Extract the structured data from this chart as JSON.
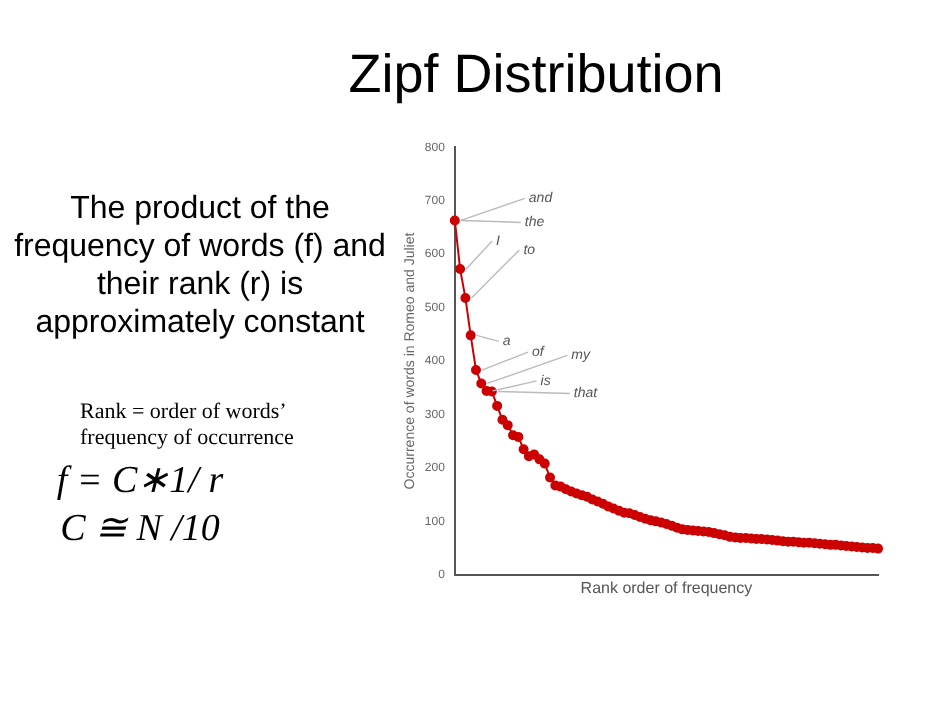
{
  "chart_data": {
    "type": "line",
    "title": "Zipf Distribution",
    "xlabel": "Rank order of frequency",
    "ylabel": "Occurrence of words in Romeo and Juliet",
    "categories": [
      null,
      null,
      null,
      null,
      null,
      null,
      null,
      null,
      null,
      null,
      null,
      null,
      null,
      null,
      null,
      null,
      null,
      null,
      null,
      null,
      null,
      null,
      null,
      null,
      null,
      null,
      null,
      null,
      null,
      null,
      null,
      null,
      null,
      null,
      null,
      null,
      null,
      null,
      null,
      null,
      null,
      null,
      null,
      null,
      null,
      null,
      null,
      null,
      null,
      null,
      null,
      null,
      null,
      null,
      null,
      null,
      null,
      null,
      null,
      null,
      null,
      null,
      null,
      null,
      null,
      null,
      null,
      null,
      null,
      null,
      null,
      null,
      null,
      null,
      null,
      null,
      null,
      null,
      null,
      null,
      null
    ],
    "series": [
      {
        "color": "#cc0000",
        "values": [
          663,
          572,
          518,
          448,
          383,
          358,
          344,
          343,
          316,
          290,
          280,
          261,
          258,
          235,
          222,
          225,
          216,
          208,
          182,
          167,
          165,
          160,
          156,
          152,
          149,
          146,
          141,
          137,
          133,
          128,
          124,
          120,
          116,
          115,
          112,
          108,
          105,
          102,
          100,
          98,
          95,
          92,
          88,
          85,
          84,
          83,
          82,
          81,
          80,
          78,
          76,
          74,
          71,
          70,
          69,
          69,
          68,
          67,
          67,
          66,
          65,
          64,
          63,
          62,
          62,
          61,
          60,
          60,
          59,
          58,
          57,
          56,
          56,
          55,
          54,
          53,
          52,
          51,
          50,
          50,
          49
        ]
      }
    ],
    "ylim": [
      0,
      800
    ],
    "yticks": [
      0,
      100,
      200,
      300,
      400,
      500,
      600,
      700,
      800
    ],
    "grid": false,
    "legend": false,
    "marker": "circle",
    "tick_labels": "y",
    "annotations": [
      "The product of the frequency of words (f) and their rank (r) is approximately constant",
      "Rank = order of words’ frequency of occurrence",
      "f = C∗1/ r",
      "C ≅ N /10",
      "and",
      "the",
      "I",
      "to",
      "a",
      "of",
      "my",
      "is",
      "that"
    ]
  }
}
